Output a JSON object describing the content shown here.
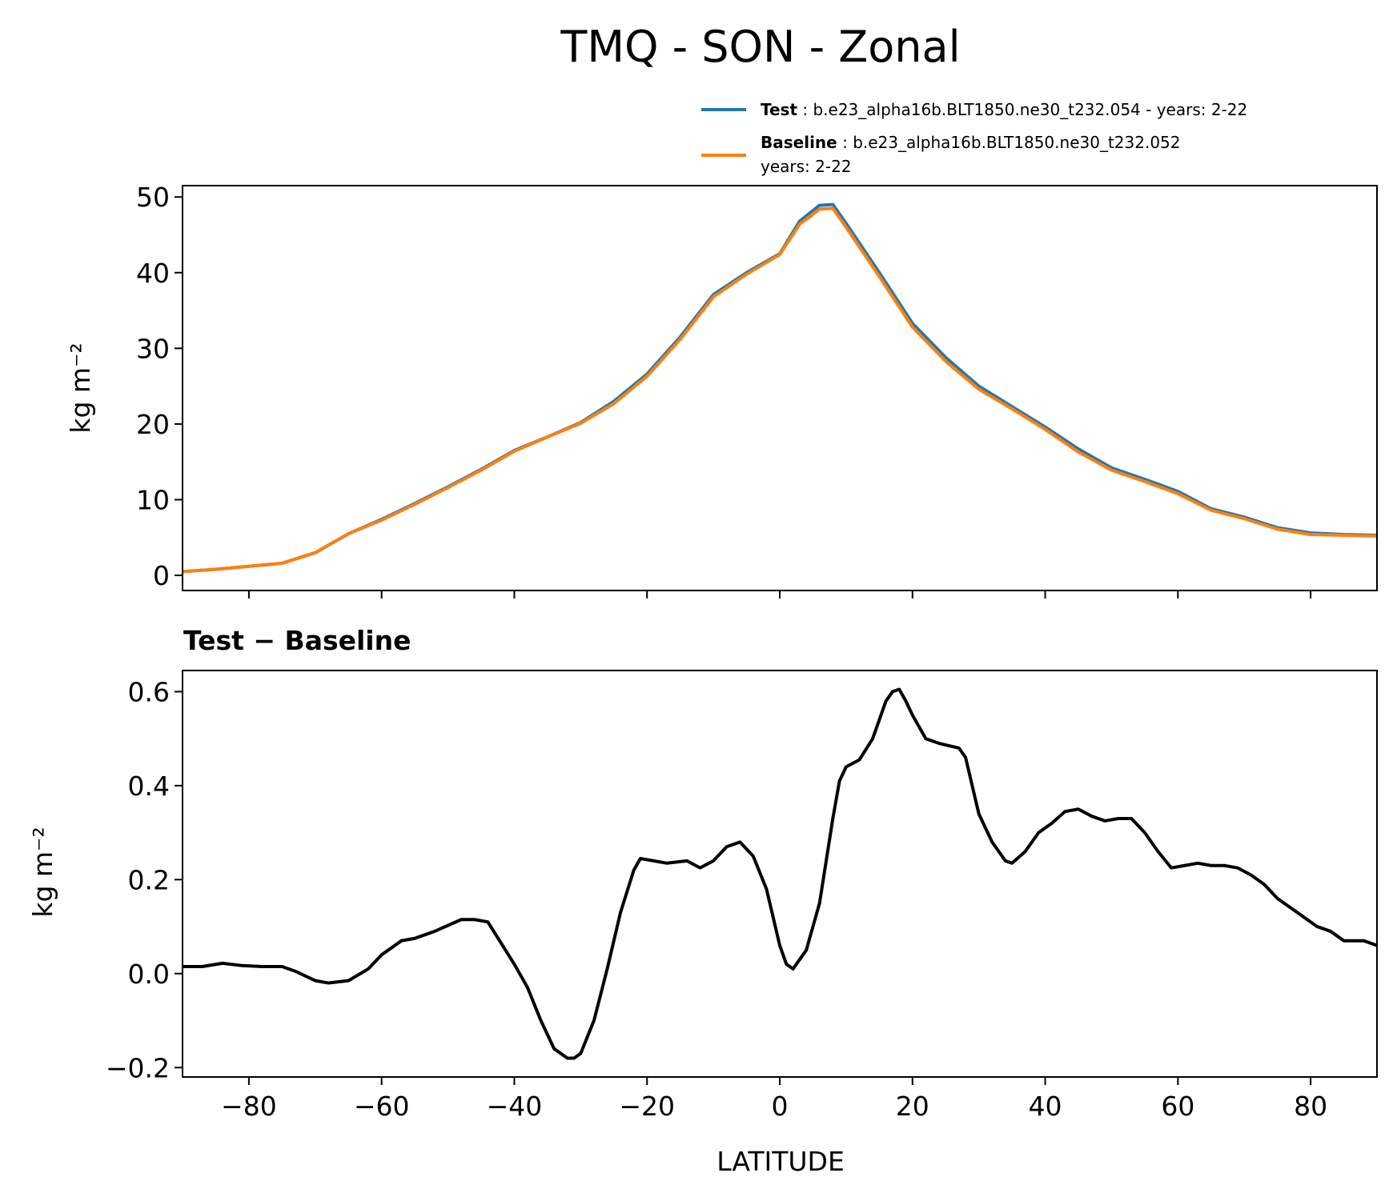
{
  "chart_data": [
    {
      "type": "line",
      "title": "TMQ - SON - Zonal",
      "xlabel": "",
      "ylabel": "kg m⁻²",
      "xlim": [
        -90,
        90
      ],
      "ylim": [
        -2,
        51.5
      ],
      "xticks": [
        -80,
        -60,
        -40,
        -20,
        0,
        20,
        40,
        60,
        80
      ],
      "yticks": [
        0,
        10,
        20,
        30,
        40,
        50
      ],
      "legend_position": "above-right",
      "legend": [
        {
          "name": "Test",
          "sep": " : ",
          "desc": "b.e23_alpha16b.BLT1850.ne30_t232.054 - years: 2-22",
          "desc2": "",
          "color": "#1f77b4"
        },
        {
          "name": "Baseline",
          "sep": " : ",
          "desc": "b.e23_alpha16b.BLT1850.ne30_t232.052",
          "desc2": "years: 2-22",
          "color": "#ff7f0e"
        }
      ],
      "x": [
        -90,
        -85,
        -80,
        -75,
        -70,
        -65,
        -60,
        -55,
        -50,
        -45,
        -40,
        -35,
        -30,
        -25,
        -20,
        -15,
        -10,
        -5,
        0,
        3,
        6,
        8,
        10,
        15,
        20,
        25,
        30,
        35,
        40,
        45,
        50,
        55,
        60,
        65,
        70,
        75,
        80,
        85,
        90
      ],
      "series": [
        {
          "name": "Test",
          "color": "#1f77b4",
          "values": [
            0.5,
            0.8,
            1.2,
            1.6,
            3.0,
            5.5,
            7.4,
            9.5,
            11.7,
            14.0,
            16.5,
            18.3,
            20.2,
            23.0,
            26.6,
            31.5,
            37.1,
            40.0,
            42.5,
            46.8,
            48.9,
            49.0,
            46.5,
            40.0,
            33.3,
            28.8,
            25.0,
            22.3,
            19.6,
            16.7,
            14.2,
            12.7,
            11.1,
            8.8,
            7.7,
            6.3,
            5.6,
            5.4,
            5.3
          ]
        },
        {
          "name": "Baseline",
          "color": "#ff7f0e",
          "values": [
            0.5,
            0.8,
            1.2,
            1.6,
            3.0,
            5.5,
            7.3,
            9.4,
            11.6,
            13.9,
            16.4,
            18.3,
            20.1,
            22.7,
            26.3,
            31.2,
            36.8,
            39.8,
            42.4,
            46.4,
            48.4,
            48.5,
            46.0,
            39.5,
            32.8,
            28.3,
            24.6,
            22.0,
            19.3,
            16.3,
            13.9,
            12.4,
            10.8,
            8.6,
            7.5,
            6.1,
            5.4,
            5.3,
            5.2
          ]
        }
      ]
    },
    {
      "type": "line",
      "title": "Test − Baseline",
      "xlabel": "LATITUDE",
      "ylabel": "kg m⁻²",
      "xlim": [
        -90,
        90
      ],
      "ylim": [
        -0.22,
        0.645
      ],
      "xticks": [
        -80,
        -60,
        -40,
        -20,
        0,
        20,
        40,
        60,
        80
      ],
      "yticks": [
        -0.2,
        0.0,
        0.2,
        0.4,
        0.6
      ],
      "ytick_labels": [
        "−0.2",
        "0.0",
        "0.2",
        "0.4",
        "0.6"
      ],
      "xtick_labels": [
        "−80",
        "−60",
        "−40",
        "−20",
        "0",
        "20",
        "40",
        "60",
        "80"
      ],
      "x": [
        -90,
        -87,
        -84,
        -81,
        -78,
        -75,
        -73,
        -70,
        -68,
        -65,
        -62,
        -60,
        -57,
        -55,
        -52,
        -48,
        -46,
        -44,
        -42,
        -40,
        -38,
        -36,
        -34,
        -32,
        -31,
        -30,
        -28,
        -26,
        -24,
        -22,
        -21,
        -19,
        -17,
        -14,
        -12,
        -10,
        -8,
        -6,
        -4,
        -2,
        0,
        1,
        2,
        4,
        6,
        8,
        9,
        10,
        12,
        14,
        16,
        17,
        18,
        19,
        20,
        22,
        24,
        27,
        28,
        30,
        32,
        34,
        35,
        37,
        39,
        41,
        43,
        45,
        47,
        49,
        51,
        53,
        55,
        57,
        59,
        61,
        63,
        65,
        67,
        69,
        71,
        73,
        75,
        77,
        79,
        81,
        83,
        85,
        88,
        90
      ],
      "series": [
        {
          "name": "Test − Baseline",
          "color": "#000000",
          "values": [
            0.015,
            0.015,
            0.022,
            0.017,
            0.015,
            0.015,
            0.005,
            -0.015,
            -0.02,
            -0.015,
            0.01,
            0.04,
            0.07,
            0.075,
            0.09,
            0.115,
            0.115,
            0.11,
            0.065,
            0.02,
            -0.03,
            -0.1,
            -0.16,
            -0.18,
            -0.18,
            -0.17,
            -0.1,
            0.01,
            0.13,
            0.22,
            0.245,
            0.24,
            0.235,
            0.24,
            0.225,
            0.24,
            0.27,
            0.28,
            0.25,
            0.18,
            0.06,
            0.02,
            0.01,
            0.05,
            0.15,
            0.33,
            0.41,
            0.44,
            0.455,
            0.5,
            0.58,
            0.6,
            0.605,
            0.58,
            0.55,
            0.5,
            0.49,
            0.48,
            0.46,
            0.34,
            0.28,
            0.24,
            0.235,
            0.26,
            0.3,
            0.32,
            0.345,
            0.35,
            0.335,
            0.325,
            0.33,
            0.33,
            0.3,
            0.26,
            0.225,
            0.23,
            0.235,
            0.23,
            0.23,
            0.225,
            0.21,
            0.19,
            0.16,
            0.14,
            0.12,
            0.1,
            0.09,
            0.07,
            0.07,
            0.06
          ]
        }
      ]
    }
  ]
}
